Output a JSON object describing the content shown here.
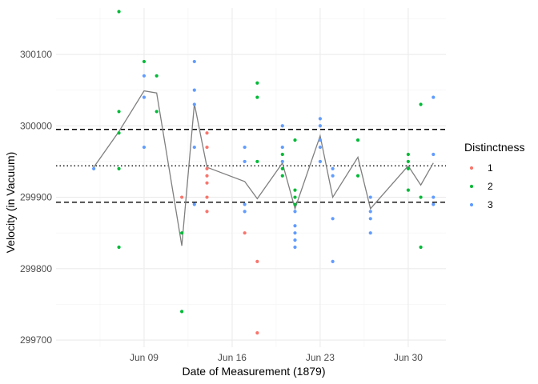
{
  "chart_data": {
    "type": "scatter",
    "xlabel": "Date of Measurement (1879)",
    "ylabel": "Velocity (in Vacuum)",
    "x_axis_type": "date",
    "xlim": [
      "1879-06-02",
      "1879-07-03"
    ],
    "ylim": [
      299690,
      300165
    ],
    "x_ticks": [
      {
        "date": "1879-06-09",
        "label": "Jun 09"
      },
      {
        "date": "1879-06-16",
        "label": "Jun 16"
      },
      {
        "date": "1879-06-23",
        "label": "Jun 23"
      },
      {
        "date": "1879-06-30",
        "label": "Jun 30"
      }
    ],
    "y_ticks": [
      {
        "value": 299700,
        "label": "299700"
      },
      {
        "value": 299800,
        "label": "299800"
      },
      {
        "value": 299900,
        "label": "299900"
      },
      {
        "value": 300000,
        "label": "300000"
      },
      {
        "value": 300100,
        "label": "300100"
      }
    ],
    "grid": true,
    "legend": {
      "title": "Distinctness",
      "position": "right",
      "entries": [
        {
          "label": "1",
          "color": "#F8766D"
        },
        {
          "label": "2",
          "color": "#00BA38"
        },
        {
          "label": "3",
          "color": "#619CFF"
        }
      ]
    },
    "reference_lines": [
      {
        "y": 299944,
        "style": "dotted",
        "color": "#000000"
      },
      {
        "y": 299995,
        "style": "dashed",
        "color": "#000000"
      },
      {
        "y": 299893,
        "style": "dashed",
        "color": "#000000"
      }
    ],
    "series": [
      {
        "name": "1",
        "color": "#F8766D",
        "points": [
          {
            "x": "1879-06-12",
            "y": 299900
          },
          {
            "x": "1879-06-14",
            "y": 299990
          },
          {
            "x": "1879-06-14",
            "y": 299970
          },
          {
            "x": "1879-06-14",
            "y": 299940
          },
          {
            "x": "1879-06-14",
            "y": 299930
          },
          {
            "x": "1879-06-14",
            "y": 299920
          },
          {
            "x": "1879-06-14",
            "y": 299900
          },
          {
            "x": "1879-06-14",
            "y": 299880
          },
          {
            "x": "1879-06-17",
            "y": 299850
          },
          {
            "x": "1879-06-18",
            "y": 299810
          },
          {
            "x": "1879-06-18",
            "y": 299710
          }
        ]
      },
      {
        "name": "2",
        "color": "#00BA38",
        "points": [
          {
            "x": "1879-06-07",
            "y": 300160
          },
          {
            "x": "1879-06-07",
            "y": 300020
          },
          {
            "x": "1879-06-07",
            "y": 299990
          },
          {
            "x": "1879-06-07",
            "y": 299940
          },
          {
            "x": "1879-06-07",
            "y": 299830
          },
          {
            "x": "1879-06-09",
            "y": 300090
          },
          {
            "x": "1879-06-10",
            "y": 300070
          },
          {
            "x": "1879-06-10",
            "y": 300020
          },
          {
            "x": "1879-06-12",
            "y": 299850
          },
          {
            "x": "1879-06-12",
            "y": 299740
          },
          {
            "x": "1879-06-18",
            "y": 300060
          },
          {
            "x": "1879-06-18",
            "y": 300040
          },
          {
            "x": "1879-06-18",
            "y": 299950
          },
          {
            "x": "1879-06-20",
            "y": 299960
          },
          {
            "x": "1879-06-20",
            "y": 299940
          },
          {
            "x": "1879-06-20",
            "y": 299930
          },
          {
            "x": "1879-06-21",
            "y": 299980
          },
          {
            "x": "1879-06-21",
            "y": 299910
          },
          {
            "x": "1879-06-21",
            "y": 299900
          },
          {
            "x": "1879-06-21",
            "y": 299890
          },
          {
            "x": "1879-06-26",
            "y": 299980
          },
          {
            "x": "1879-06-26",
            "y": 299930
          },
          {
            "x": "1879-06-30",
            "y": 299960
          },
          {
            "x": "1879-06-30",
            "y": 299950
          },
          {
            "x": "1879-06-30",
            "y": 299940
          },
          {
            "x": "1879-06-30",
            "y": 299910
          },
          {
            "x": "1879-07-01",
            "y": 300030
          },
          {
            "x": "1879-07-01",
            "y": 299900
          },
          {
            "x": "1879-07-01",
            "y": 299830
          }
        ]
      },
      {
        "name": "3",
        "color": "#619CFF",
        "points": [
          {
            "x": "1879-06-05",
            "y": 299940
          },
          {
            "x": "1879-06-09",
            "y": 300070
          },
          {
            "x": "1879-06-09",
            "y": 300040
          },
          {
            "x": "1879-06-09",
            "y": 299970
          },
          {
            "x": "1879-06-13",
            "y": 300090
          },
          {
            "x": "1879-06-13",
            "y": 300050
          },
          {
            "x": "1879-06-13",
            "y": 300030
          },
          {
            "x": "1879-06-13",
            "y": 299970
          },
          {
            "x": "1879-06-13",
            "y": 299890
          },
          {
            "x": "1879-06-17",
            "y": 299970
          },
          {
            "x": "1879-06-17",
            "y": 299950
          },
          {
            "x": "1879-06-17",
            "y": 299890
          },
          {
            "x": "1879-06-17",
            "y": 299880
          },
          {
            "x": "1879-06-20",
            "y": 300000
          },
          {
            "x": "1879-06-20",
            "y": 299970
          },
          {
            "x": "1879-06-20",
            "y": 299950
          },
          {
            "x": "1879-06-21",
            "y": 299880
          },
          {
            "x": "1879-06-21",
            "y": 299860
          },
          {
            "x": "1879-06-21",
            "y": 299850
          },
          {
            "x": "1879-06-21",
            "y": 299840
          },
          {
            "x": "1879-06-21",
            "y": 299830
          },
          {
            "x": "1879-06-23",
            "y": 300010
          },
          {
            "x": "1879-06-23",
            "y": 300000
          },
          {
            "x": "1879-06-23",
            "y": 299980
          },
          {
            "x": "1879-06-23",
            "y": 299970
          },
          {
            "x": "1879-06-23",
            "y": 299950
          },
          {
            "x": "1879-06-24",
            "y": 299940
          },
          {
            "x": "1879-06-24",
            "y": 299930
          },
          {
            "x": "1879-06-24",
            "y": 299870
          },
          {
            "x": "1879-06-24",
            "y": 299810
          },
          {
            "x": "1879-06-27",
            "y": 299900
          },
          {
            "x": "1879-06-27",
            "y": 299880
          },
          {
            "x": "1879-06-27",
            "y": 299870
          },
          {
            "x": "1879-06-27",
            "y": 299850
          },
          {
            "x": "1879-07-02",
            "y": 300040
          },
          {
            "x": "1879-07-02",
            "y": 299960
          },
          {
            "x": "1879-07-02",
            "y": 299900
          },
          {
            "x": "1879-07-02",
            "y": 299890
          }
        ]
      }
    ],
    "mean_line": {
      "color": "#7f7f7f",
      "points": [
        {
          "x": "1879-06-05",
          "y": 299942
        },
        {
          "x": "1879-06-07",
          "y": 299992
        },
        {
          "x": "1879-06-09",
          "y": 300049
        },
        {
          "x": "1879-06-10",
          "y": 300046
        },
        {
          "x": "1879-06-12",
          "y": 299832
        },
        {
          "x": "1879-06-13",
          "y": 300031
        },
        {
          "x": "1879-06-14",
          "y": 299942
        },
        {
          "x": "1879-06-17",
          "y": 299922
        },
        {
          "x": "1879-06-18",
          "y": 299898
        },
        {
          "x": "1879-06-20",
          "y": 299948
        },
        {
          "x": "1879-06-21",
          "y": 299884
        },
        {
          "x": "1879-06-23",
          "y": 299986
        },
        {
          "x": "1879-06-24",
          "y": 299900
        },
        {
          "x": "1879-06-26",
          "y": 299956
        },
        {
          "x": "1879-06-27",
          "y": 299884
        },
        {
          "x": "1879-06-30",
          "y": 299944
        },
        {
          "x": "1879-07-01",
          "y": 299917
        },
        {
          "x": "1879-07-02",
          "y": 299948
        }
      ]
    }
  }
}
